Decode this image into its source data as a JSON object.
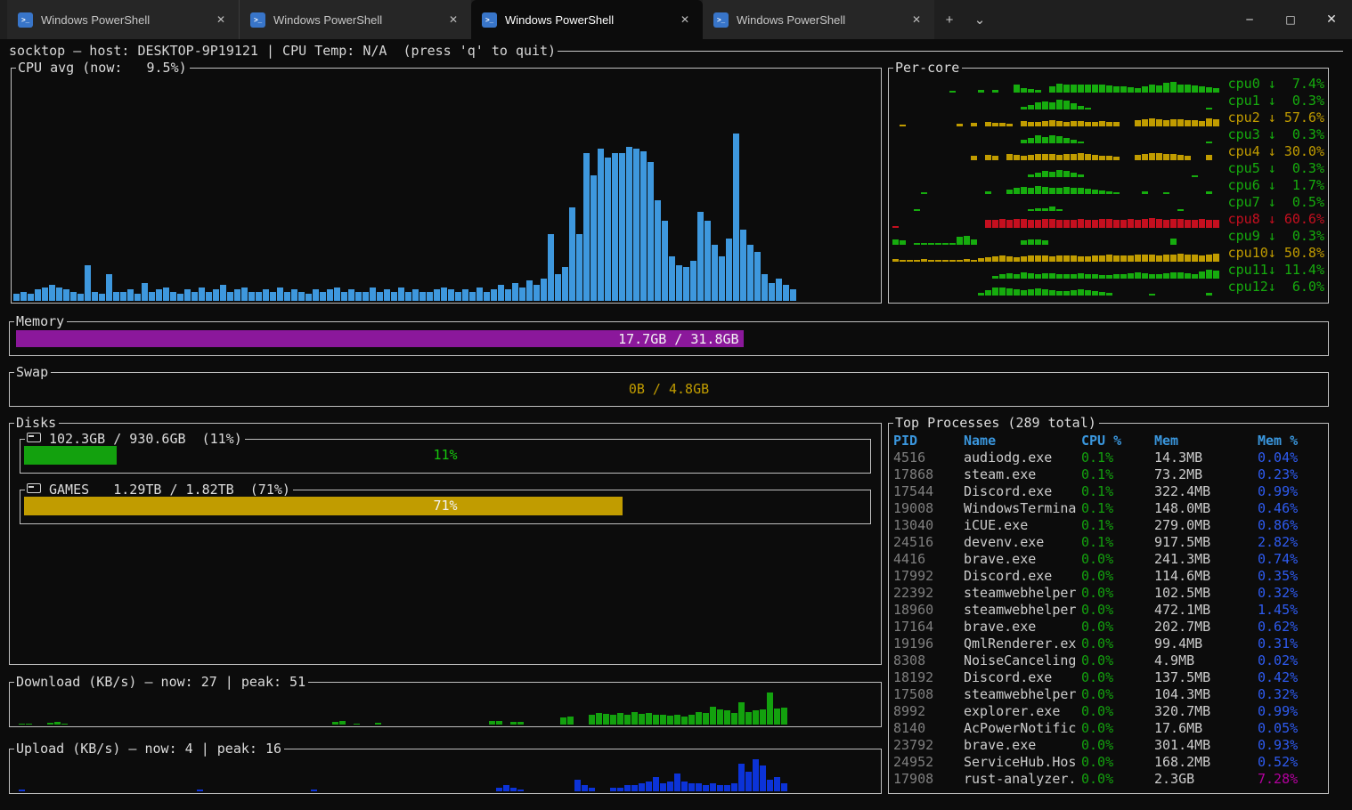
{
  "tabbar": {
    "tabs": [
      {
        "label": "Windows PowerShell"
      },
      {
        "label": "Windows PowerShell"
      },
      {
        "label": "Windows PowerShell"
      },
      {
        "label": "Windows PowerShell"
      }
    ],
    "active_index": 2,
    "tab_close_glyph": "✕",
    "ps_icon_glyph": ">_",
    "new_tab": "+",
    "dropdown": "⌄",
    "minimize": "─",
    "maximize": "□",
    "close": "✕"
  },
  "header": {
    "text": "socktop — host: DESKTOP-9P19121 | CPU Temp: N/A  (press 'q' to quit)"
  },
  "cpu_avg": {
    "title": "CPU avg (now:   9.5%)",
    "chart": {
      "type": "bar",
      "unit": "%",
      "max": 100,
      "color_key": "cpu_blue",
      "values": [
        3,
        4,
        3,
        5,
        6,
        7,
        6,
        5,
        4,
        3,
        16,
        4,
        3,
        12,
        4,
        4,
        5,
        3,
        8,
        4,
        5,
        6,
        4,
        3,
        5,
        4,
        6,
        4,
        5,
        7,
        4,
        5,
        6,
        4,
        4,
        5,
        4,
        6,
        4,
        5,
        4,
        3,
        5,
        4,
        5,
        6,
        4,
        5,
        4,
        4,
        6,
        4,
        5,
        4,
        6,
        4,
        5,
        4,
        4,
        5,
        6,
        5,
        4,
        5,
        4,
        6,
        4,
        5,
        7,
        5,
        8,
        6,
        9,
        7,
        10,
        30,
        12,
        15,
        42,
        30,
        66,
        56,
        68,
        64,
        66,
        66,
        69,
        68,
        67,
        62,
        45,
        36,
        20,
        16,
        15,
        18,
        40,
        36,
        25,
        20,
        28,
        75,
        32,
        25,
        22,
        12,
        8,
        10,
        7,
        5
      ]
    }
  },
  "per_core": {
    "title": "Per-core",
    "cores": [
      {
        "name": "cpu0",
        "value": "7.4%",
        "color": "green",
        "spark": [
          0,
          0,
          0,
          0,
          0,
          0,
          0,
          0,
          10,
          0,
          0,
          0,
          15,
          0,
          18,
          0,
          0,
          45,
          25,
          20,
          15,
          0,
          35,
          55,
          50,
          45,
          48,
          45,
          50,
          45,
          40,
          38,
          35,
          30,
          25,
          35,
          45,
          40,
          60,
          65,
          50,
          45,
          40,
          35,
          30,
          25
        ]
      },
      {
        "name": "cpu1",
        "value": "0.3%",
        "color": "green",
        "spark": [
          0,
          0,
          0,
          0,
          0,
          0,
          0,
          0,
          0,
          0,
          0,
          0,
          0,
          0,
          0,
          0,
          0,
          0,
          15,
          25,
          40,
          50,
          40,
          60,
          55,
          35,
          20,
          12,
          0,
          0,
          0,
          0,
          0,
          0,
          0,
          0,
          0,
          0,
          0,
          0,
          0,
          0,
          0,
          0,
          10,
          0
        ]
      },
      {
        "name": "cpu2",
        "value": "57.6%",
        "color": "yellow",
        "spark": [
          0,
          12,
          0,
          0,
          0,
          0,
          0,
          0,
          0,
          18,
          0,
          20,
          0,
          25,
          22,
          20,
          18,
          0,
          30,
          28,
          25,
          30,
          35,
          30,
          28,
          32,
          30,
          28,
          25,
          30,
          28,
          25,
          0,
          0,
          35,
          40,
          45,
          40,
          38,
          42,
          40,
          38,
          35,
          30,
          45,
          40
        ]
      },
      {
        "name": "cpu3",
        "value": "0.3%",
        "color": "green",
        "spark": [
          0,
          0,
          0,
          0,
          0,
          0,
          0,
          0,
          0,
          0,
          0,
          0,
          0,
          0,
          0,
          0,
          0,
          0,
          20,
          30,
          45,
          35,
          50,
          40,
          30,
          20,
          12,
          0,
          0,
          0,
          0,
          0,
          0,
          0,
          0,
          0,
          0,
          0,
          0,
          0,
          0,
          0,
          0,
          0,
          12,
          0
        ]
      },
      {
        "name": "cpu4",
        "value": "30.0%",
        "color": "yellow",
        "spark": [
          0,
          0,
          0,
          0,
          0,
          0,
          0,
          0,
          0,
          0,
          0,
          28,
          0,
          30,
          25,
          0,
          35,
          30,
          28,
          32,
          35,
          38,
          35,
          32,
          35,
          38,
          40,
          35,
          30,
          28,
          25,
          22,
          0,
          0,
          30,
          35,
          40,
          42,
          38,
          35,
          30,
          28,
          0,
          0,
          30,
          0
        ]
      },
      {
        "name": "cpu5",
        "value": "0.3%",
        "color": "green",
        "spark": [
          0,
          0,
          0,
          0,
          0,
          0,
          0,
          0,
          0,
          0,
          0,
          0,
          0,
          0,
          0,
          0,
          0,
          0,
          0,
          15,
          25,
          35,
          30,
          40,
          35,
          25,
          15,
          0,
          0,
          0,
          0,
          0,
          0,
          0,
          0,
          0,
          0,
          0,
          0,
          0,
          0,
          0,
          10,
          0,
          0,
          0
        ]
      },
      {
        "name": "cpu6",
        "value": "1.7%",
        "color": "green",
        "spark": [
          0,
          0,
          0,
          0,
          12,
          0,
          0,
          0,
          0,
          0,
          0,
          0,
          0,
          18,
          0,
          0,
          25,
          35,
          40,
          35,
          45,
          40,
          38,
          35,
          40,
          38,
          35,
          30,
          25,
          20,
          15,
          12,
          0,
          0,
          0,
          15,
          0,
          0,
          12,
          0,
          0,
          0,
          0,
          0,
          15,
          0
        ]
      },
      {
        "name": "cpu7",
        "value": "0.5%",
        "color": "green",
        "spark": [
          0,
          0,
          0,
          10,
          0,
          0,
          0,
          0,
          0,
          0,
          0,
          0,
          0,
          0,
          0,
          0,
          0,
          0,
          0,
          12,
          15,
          18,
          25,
          12,
          0,
          0,
          0,
          0,
          0,
          0,
          0,
          0,
          0,
          0,
          0,
          0,
          0,
          0,
          0,
          0,
          10,
          0,
          0,
          0,
          0,
          0
        ]
      },
      {
        "name": "cpu8",
        "value": "60.6%",
        "color": "red",
        "spark": [
          10,
          0,
          0,
          0,
          0,
          0,
          0,
          0,
          0,
          0,
          0,
          0,
          0,
          45,
          50,
          55,
          50,
          55,
          52,
          50,
          48,
          52,
          55,
          50,
          48,
          50,
          52,
          48,
          50,
          52,
          55,
          50,
          48,
          52,
          50,
          55,
          60,
          52,
          50,
          55,
          52,
          50,
          48,
          52,
          50,
          45
        ]
      },
      {
        "name": "cpu9",
        "value": "0.3%",
        "color": "green",
        "spark": [
          30,
          28,
          0,
          10,
          10,
          10,
          10,
          12,
          10,
          50,
          55,
          30,
          0,
          0,
          0,
          0,
          0,
          0,
          25,
          30,
          32,
          28,
          0,
          0,
          0,
          0,
          0,
          0,
          0,
          0,
          0,
          0,
          0,
          0,
          0,
          0,
          0,
          0,
          0,
          35,
          0,
          0,
          0,
          0,
          0,
          0
        ]
      },
      {
        "name": "cpu10",
        "value": "50.8%",
        "color": "yellow",
        "spark": [
          15,
          12,
          10,
          12,
          15,
          12,
          10,
          12,
          10,
          12,
          15,
          12,
          20,
          25,
          30,
          35,
          30,
          28,
          32,
          35,
          38,
          35,
          32,
          35,
          38,
          35,
          32,
          30,
          35,
          38,
          40,
          38,
          35,
          38,
          40,
          42,
          40,
          38,
          40,
          42,
          45,
          42,
          40,
          38,
          42,
          45
        ]
      },
      {
        "name": "cpu11",
        "value": "11.4%",
        "color": "green",
        "spark": [
          0,
          0,
          0,
          0,
          0,
          0,
          0,
          0,
          0,
          0,
          0,
          0,
          0,
          0,
          18,
          25,
          30,
          28,
          35,
          30,
          28,
          32,
          30,
          28,
          25,
          28,
          30,
          28,
          25,
          22,
          20,
          25,
          28,
          32,
          35,
          30,
          28,
          25,
          30,
          35,
          35,
          30,
          25,
          40,
          55,
          45
        ]
      },
      {
        "name": "cpu12",
        "value": "6.0%",
        "color": "green",
        "spark": [
          0,
          0,
          0,
          0,
          0,
          0,
          0,
          0,
          0,
          0,
          0,
          0,
          15,
          30,
          45,
          50,
          40,
          35,
          30,
          38,
          42,
          35,
          30,
          28,
          25,
          30,
          35,
          30,
          25,
          20,
          15,
          0,
          0,
          0,
          0,
          0,
          12,
          0,
          0,
          0,
          0,
          0,
          0,
          0,
          18,
          0
        ]
      }
    ]
  },
  "memory": {
    "title": "Memory",
    "value": "17.7GB / 31.8GB",
    "percent": 55.7
  },
  "swap": {
    "title": "Swap",
    "value": "0B / 4.8GB",
    "percent": 0
  },
  "disks": {
    "title": "Disks",
    "items": [
      {
        "title": "102.3GB / 930.6GB  (11%)",
        "percent": 11,
        "percent_label": "11%",
        "fill_color_key": "green_bar",
        "label_color_key": "green_text"
      },
      {
        "title": "GAMES   1.29TB / 1.82TB  (71%)",
        "percent": 71,
        "percent_label": "71%",
        "fill_color_key": "yellow",
        "label_color_key": "white"
      }
    ]
  },
  "download": {
    "title": "Download (KB/s) — now: 27 | peak: 51",
    "chart": {
      "type": "bar",
      "unit": "KB/s",
      "max": 51,
      "color_key": "green_bar",
      "values": [
        0,
        2,
        2,
        0,
        0,
        3,
        4,
        2,
        0,
        0,
        0,
        0,
        0,
        0,
        0,
        0,
        0,
        0,
        0,
        0,
        0,
        0,
        0,
        0,
        0,
        0,
        0,
        0,
        0,
        0,
        0,
        0,
        0,
        0,
        0,
        0,
        0,
        0,
        0,
        0,
        0,
        0,
        0,
        0,
        0,
        4,
        5,
        0,
        2,
        0,
        0,
        3,
        0,
        0,
        0,
        0,
        0,
        0,
        0,
        0,
        0,
        0,
        0,
        0,
        0,
        0,
        0,
        5,
        6,
        0,
        4,
        4,
        0,
        0,
        0,
        0,
        0,
        12,
        13,
        0,
        0,
        16,
        18,
        17,
        16,
        18,
        16,
        20,
        17,
        18,
        16,
        15,
        14,
        16,
        13,
        15,
        20,
        18,
        28,
        24,
        22,
        18,
        35,
        20,
        22,
        24,
        51,
        25,
        27,
        0
      ]
    }
  },
  "upload": {
    "title": "Upload (KB/s) — now: 4 | peak: 16",
    "chart": {
      "type": "bar",
      "unit": "KB/s",
      "max": 16,
      "color_key": "blue_bar",
      "values": [
        0,
        1,
        0,
        0,
        0,
        0,
        0,
        0,
        0,
        0,
        0,
        0,
        0,
        0,
        0,
        0,
        0,
        0,
        0,
        0,
        0,
        0,
        0,
        0,
        0,
        0,
        1,
        0,
        0,
        0,
        0,
        0,
        0,
        0,
        0,
        0,
        0,
        0,
        0,
        0,
        0,
        0,
        1,
        0,
        0,
        0,
        0,
        0,
        0,
        0,
        0,
        0,
        0,
        0,
        0,
        0,
        0,
        0,
        0,
        0,
        0,
        0,
        0,
        0,
        0,
        0,
        0,
        0,
        2,
        3,
        2,
        1,
        0,
        0,
        0,
        0,
        0,
        0,
        0,
        6,
        3,
        2,
        0,
        0,
        2,
        2,
        3,
        3,
        4,
        5,
        7,
        4,
        5,
        9,
        5,
        4,
        4,
        3,
        4,
        3,
        3,
        4,
        14,
        10,
        16,
        13,
        6,
        7,
        4,
        0
      ]
    }
  },
  "processes": {
    "title": "Top Processes (289 total)",
    "headers": [
      "PID",
      "Name",
      "CPU %",
      "Mem",
      "Mem %"
    ],
    "rows": [
      {
        "pid": "4516",
        "name": "audiodg.exe",
        "cpu": "0.1%",
        "mem": "14.3MB",
        "mem_pct": "0.04%"
      },
      {
        "pid": "17868",
        "name": "steam.exe",
        "cpu": "0.1%",
        "mem": "73.2MB",
        "mem_pct": "0.23%"
      },
      {
        "pid": "17544",
        "name": "Discord.exe",
        "cpu": "0.1%",
        "mem": "322.4MB",
        "mem_pct": "0.99%"
      },
      {
        "pid": "19008",
        "name": "WindowsTermina",
        "cpu": "0.1%",
        "mem": "148.0MB",
        "mem_pct": "0.46%"
      },
      {
        "pid": "13040",
        "name": "iCUE.exe",
        "cpu": "0.1%",
        "mem": "279.0MB",
        "mem_pct": "0.86%"
      },
      {
        "pid": "24516",
        "name": "devenv.exe",
        "cpu": "0.1%",
        "mem": "917.5MB",
        "mem_pct": "2.82%"
      },
      {
        "pid": "4416",
        "name": "brave.exe",
        "cpu": "0.0%",
        "mem": "241.3MB",
        "mem_pct": "0.74%"
      },
      {
        "pid": "17992",
        "name": "Discord.exe",
        "cpu": "0.0%",
        "mem": "114.6MB",
        "mem_pct": "0.35%"
      },
      {
        "pid": "22392",
        "name": "steamwebhelper",
        "cpu": "0.0%",
        "mem": "102.5MB",
        "mem_pct": "0.32%"
      },
      {
        "pid": "18960",
        "name": "steamwebhelper",
        "cpu": "0.0%",
        "mem": "472.1MB",
        "mem_pct": "1.45%"
      },
      {
        "pid": "17164",
        "name": "brave.exe",
        "cpu": "0.0%",
        "mem": "202.7MB",
        "mem_pct": "0.62%"
      },
      {
        "pid": "19196",
        "name": "QmlRenderer.ex",
        "cpu": "0.0%",
        "mem": "99.4MB",
        "mem_pct": "0.31%"
      },
      {
        "pid": "8308",
        "name": "NoiseCanceling",
        "cpu": "0.0%",
        "mem": "4.9MB",
        "mem_pct": "0.02%"
      },
      {
        "pid": "18192",
        "name": "Discord.exe",
        "cpu": "0.0%",
        "mem": "137.5MB",
        "mem_pct": "0.42%"
      },
      {
        "pid": "17508",
        "name": "steamwebhelper",
        "cpu": "0.0%",
        "mem": "104.3MB",
        "mem_pct": "0.32%"
      },
      {
        "pid": "8992",
        "name": "explorer.exe",
        "cpu": "0.0%",
        "mem": "320.7MB",
        "mem_pct": "0.99%"
      },
      {
        "pid": "8140",
        "name": "AcPowerNotific",
        "cpu": "0.0%",
        "mem": "17.6MB",
        "mem_pct": "0.05%"
      },
      {
        "pid": "23792",
        "name": "brave.exe",
        "cpu": "0.0%",
        "mem": "301.4MB",
        "mem_pct": "0.93%"
      },
      {
        "pid": "24952",
        "name": "ServiceHub.Hos",
        "cpu": "0.0%",
        "mem": "168.2MB",
        "mem_pct": "0.52%"
      },
      {
        "pid": "17908",
        "name": "rust-analyzer.",
        "cpu": "0.0%",
        "mem": "2.3GB",
        "mem_pct": "7.28%",
        "highlight": true
      }
    ]
  },
  "colors": {
    "background": "#0c0c0c",
    "border": "#c0c0c0",
    "text": "#cccccc",
    "white": "#f2f2f2",
    "cpu_blue": "#3e98de",
    "green_bar": "#13a10e",
    "green_text": "#16c60c",
    "yellow": "#c19c00",
    "red": "#c50f1f",
    "purple": "#8b189b",
    "blue_bar": "#0c33d8",
    "header_blue": "#3a96dd",
    "value_blue": "#2e5bf0",
    "magenta": "#b4009e",
    "pid_gray": "#7f7f7f",
    "core_green": "#16ac0e",
    "core_yellow": "#c19c00",
    "core_red": "#c50f1f"
  }
}
